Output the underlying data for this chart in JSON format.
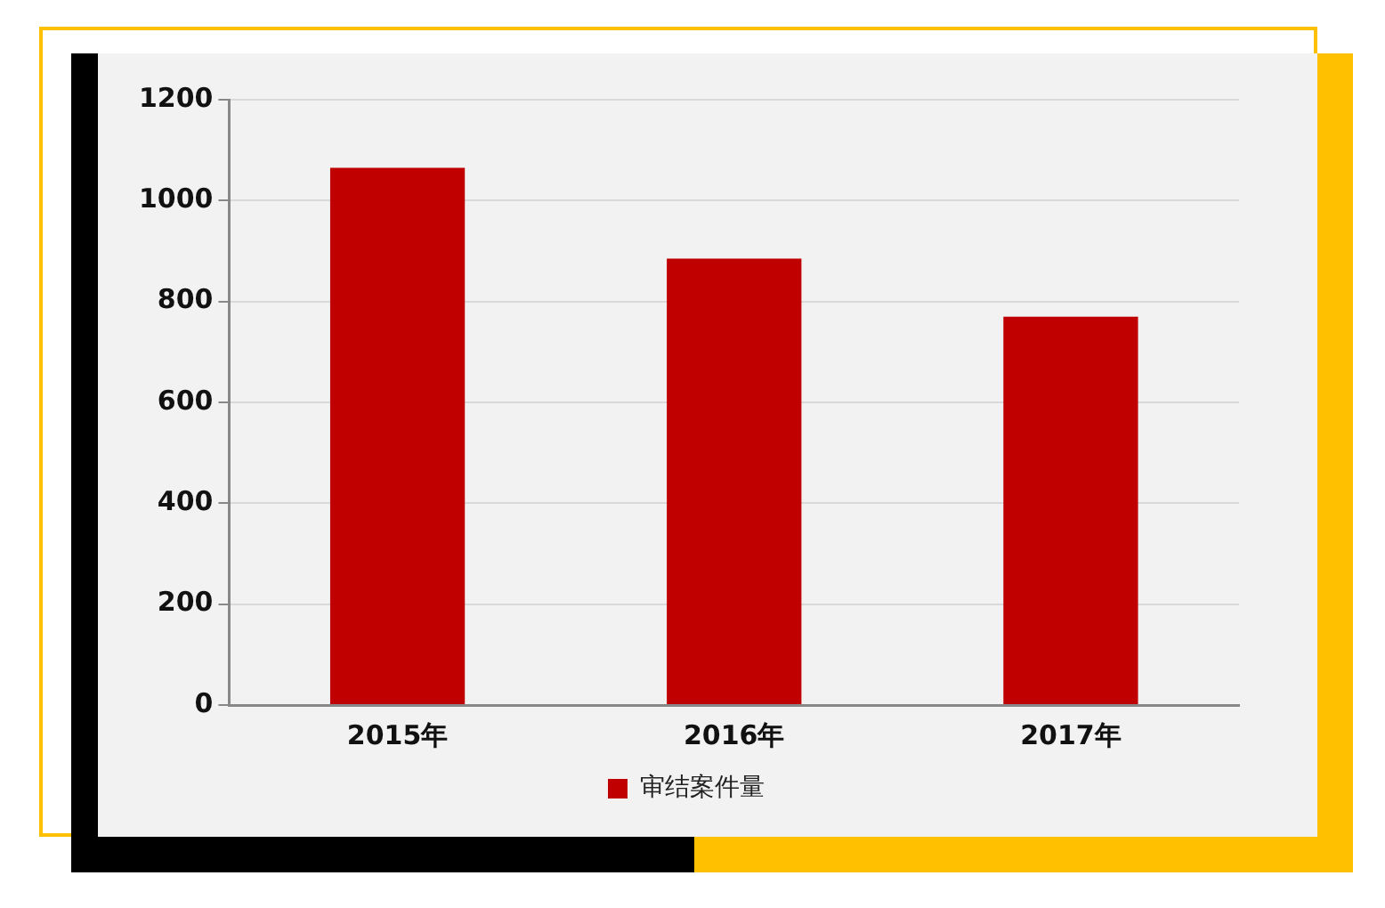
{
  "chart_data": {
    "type": "bar",
    "categories": [
      "2015年",
      "2016年",
      "2017年"
    ],
    "series": [
      {
        "name": "审结案件量",
        "color": "#c00000",
        "values": [
          1065,
          885,
          770
        ]
      }
    ],
    "ylim": [
      0,
      1200
    ],
    "yticks": [
      0,
      200,
      400,
      600,
      800,
      1000,
      1200
    ],
    "grid": "y",
    "legend": "bottom"
  }
}
